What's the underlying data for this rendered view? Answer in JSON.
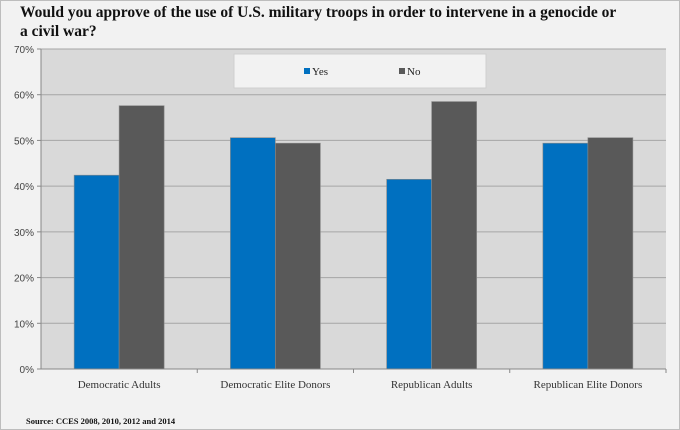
{
  "chart_data": {
    "type": "bar",
    "title": "Would you approve of the use of U.S. military troops in order to intervene in a genocide or a civil war?",
    "categories": [
      "Democratic Adults",
      "Democratic Elite Donors",
      "Republican Adults",
      "Republican Elite Donors"
    ],
    "series": [
      {
        "name": "Yes",
        "color": "#0070c0",
        "values": [
          42.4,
          50.6,
          41.5,
          49.4
        ]
      },
      {
        "name": "No",
        "color": "#595959",
        "values": [
          57.6,
          49.4,
          58.5,
          50.6
        ]
      }
    ],
    "xlabel": "",
    "ylabel": "",
    "ylim": [
      0,
      70
    ],
    "yticks": [
      0,
      10,
      20,
      30,
      40,
      50,
      60,
      70
    ],
    "ytick_labels": [
      "0%",
      "10%",
      "20%",
      "30%",
      "40%",
      "50%",
      "60%",
      "70%"
    ],
    "grid": true,
    "legend_position": "top-center",
    "source": "Source: CCES 2008, 2010, 2012 and 2014"
  },
  "colors": {
    "plot_background": "#d9d9d9",
    "page_background": "#f2f2f2",
    "gridline": "#a6a6a6"
  }
}
